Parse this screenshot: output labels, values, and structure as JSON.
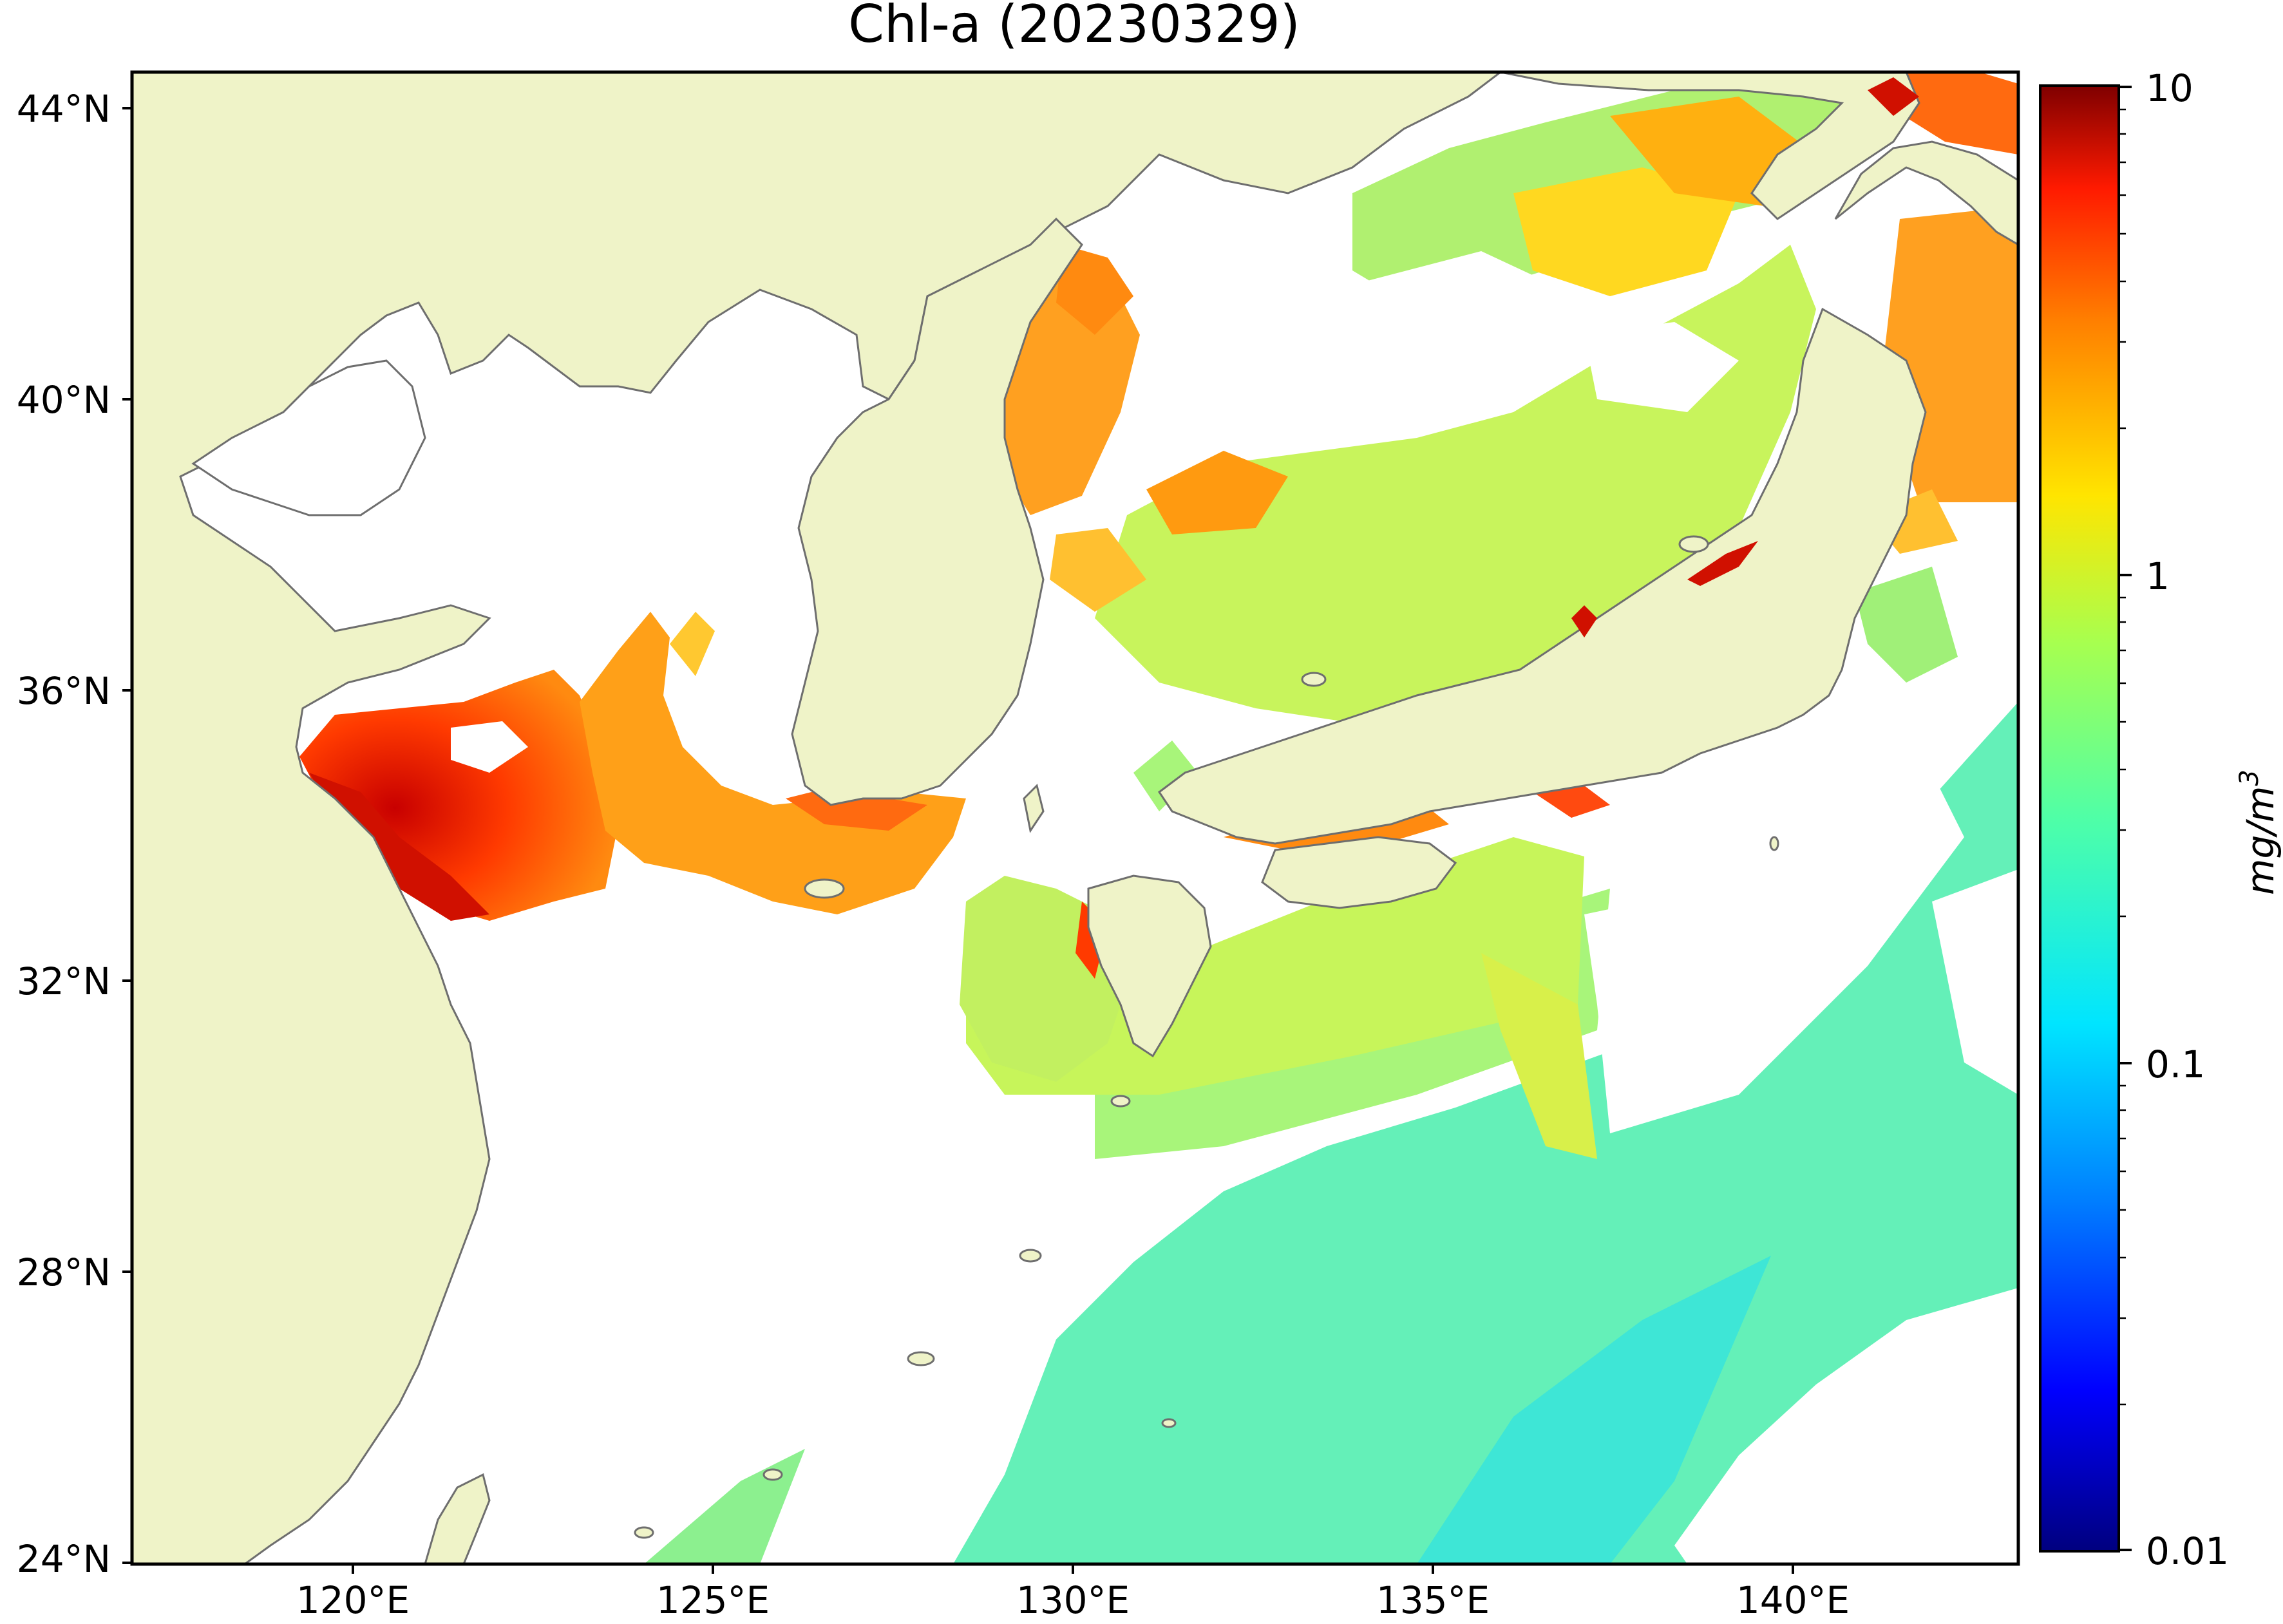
{
  "title": "Chl-a (20230329)",
  "colors": {
    "land": "#eff3c8",
    "coast": "#6e6e6e",
    "frame": "#000000",
    "no_data": "#ffffff",
    "colormap": [
      "#00007f",
      "#0000ff",
      "#007fff",
      "#00e5ff",
      "#4fffa7",
      "#a7ff4f",
      "#ffe500",
      "#ff7f00",
      "#ff1a00",
      "#7f0000"
    ]
  },
  "map": {
    "lat_ticks": [
      "44°N",
      "40°N",
      "36°N",
      "32°N",
      "28°N",
      "24°N"
    ],
    "lon_ticks": [
      "120°E",
      "125°E",
      "130°E",
      "135°E",
      "140°E"
    ],
    "lon_range": [
      117,
      143.2
    ],
    "lat_range": [
      23.9,
      44.5
    ]
  },
  "colorbar": {
    "label": "mg/m",
    "label_sup": "3",
    "scale": "log",
    "range": [
      0.01,
      10
    ],
    "tick_labels": [
      "10",
      "1",
      "0.1",
      "0.01"
    ]
  }
}
